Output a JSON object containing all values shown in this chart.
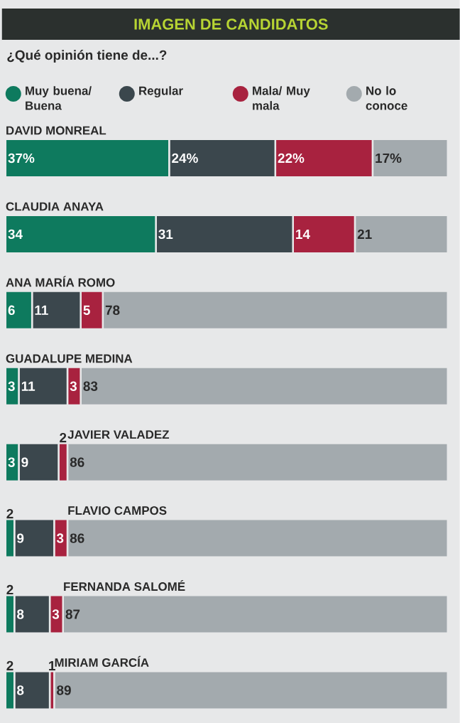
{
  "chart_data": {
    "type": "bar",
    "orientation": "horizontal",
    "stacked": true,
    "legend": "top",
    "title": "IMAGEN DE CANDIDATOS",
    "subtitle": "¿Qué opinión tiene de...?",
    "categories": [
      "DAVID MONREAL",
      "CLAUDIA ANAYA",
      "ANA MARÍA ROMO",
      "GUADALUPE MEDINA",
      "JAVIER VALADEZ",
      "FLAVIO CAMPOS",
      "FERNANDA SALOMÉ",
      "MIRIAM GARCÍA"
    ],
    "xlim": [
      0,
      100
    ],
    "series": [
      {
        "name": "Muy buena/ Buena",
        "color": "#0e7a5e",
        "values": [
          37,
          34,
          6,
          3,
          3,
          2,
          2,
          2
        ],
        "value_labels": [
          "37%",
          "34",
          "6",
          "3",
          "3",
          "2",
          "2",
          "2"
        ]
      },
      {
        "name": "Regular",
        "color": "#3b474d",
        "values": [
          24,
          31,
          11,
          11,
          9,
          9,
          8,
          8
        ],
        "value_labels": [
          "24%",
          "31",
          "11",
          "11",
          "9",
          "9",
          "8",
          "8"
        ]
      },
      {
        "name": "Mala/ Muy mala",
        "color": "#a8223f",
        "values": [
          22,
          14,
          5,
          3,
          2,
          3,
          3,
          1
        ],
        "value_labels": [
          "22%",
          "14",
          "5",
          "3",
          "2",
          "3",
          "3",
          "1"
        ]
      },
      {
        "name": "No lo conoce",
        "color": "#a3aaae",
        "values": [
          17,
          21,
          78,
          83,
          86,
          86,
          87,
          89
        ],
        "value_labels": [
          "17%",
          "21",
          "78",
          "83",
          "86",
          "86",
          "87",
          "89"
        ]
      }
    ]
  }
}
